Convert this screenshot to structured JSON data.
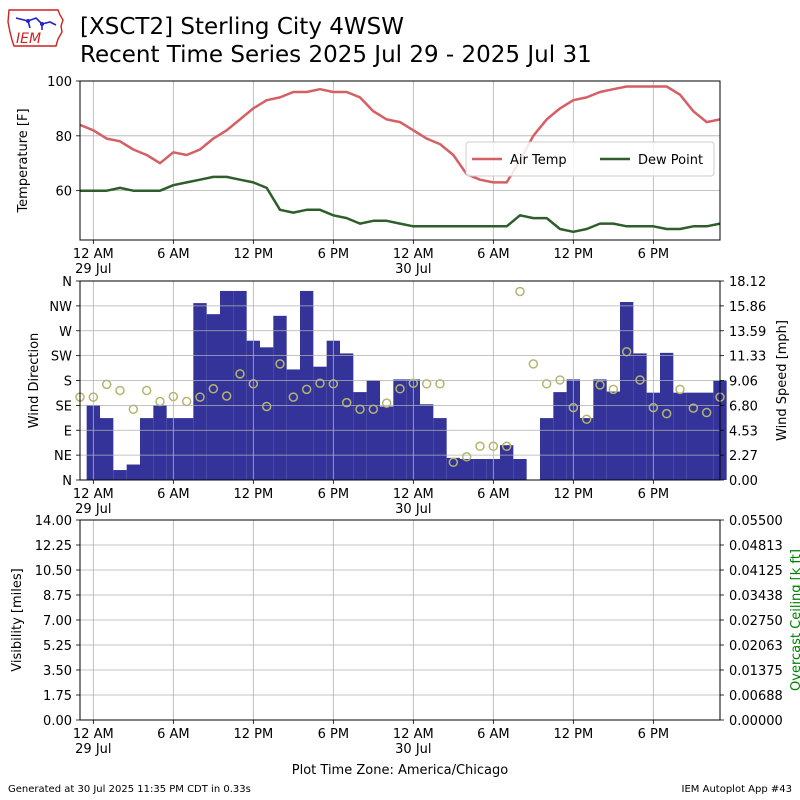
{
  "header": {
    "title_line1": "[XSCT2] Sterling City 4WSW",
    "title_line2": "Recent Time Series 2025 Jul 29 - 2025 Jul 31",
    "logo_text": "IEM"
  },
  "footer": {
    "generated": "Generated at 30 Jul 2025 11:35 PM CDT in 0.33s",
    "app": "IEM Autoplot App #43",
    "timezone": "Plot Time Zone: America/Chicago"
  },
  "x_axis": {
    "tick_hours": [
      0,
      6,
      12,
      18,
      24,
      30,
      36,
      42
    ],
    "tick_labels": [
      "12 AM",
      "6 AM",
      "12 PM",
      "6 PM",
      "12 AM",
      "6 AM",
      "12 PM",
      "6 PM"
    ],
    "date_labels": [
      {
        "hour": 0,
        "label": "29 Jul"
      },
      {
        "hour": 24,
        "label": "30 Jul"
      }
    ],
    "range_hours": [
      -1,
      47
    ]
  },
  "colors": {
    "air_temp": "#d65f64",
    "dew_point": "#2e5e2b",
    "wind_bar": "#333399",
    "gust_marker": "#b5b56e",
    "ceiling_axis": "#008000",
    "logo_red": "#cc2222",
    "logo_blue": "#2222cc"
  },
  "chart_data": [
    {
      "type": "line",
      "ylabel": "Temperature [F]",
      "ylim": [
        42,
        100
      ],
      "yticks": [
        60,
        80,
        100
      ],
      "grid": true,
      "legend": "right",
      "x_hours": [
        -1,
        0,
        1,
        2,
        3,
        4,
        5,
        6,
        7,
        8,
        9,
        10,
        11,
        12,
        13,
        14,
        15,
        16,
        17,
        18,
        19,
        20,
        21,
        22,
        23,
        24,
        25,
        26,
        27,
        28,
        29,
        30,
        31,
        32,
        33,
        34,
        35,
        36,
        37,
        38,
        39,
        40,
        41,
        42,
        43,
        44,
        45,
        46,
        47
      ],
      "series": [
        {
          "name": "Air Temp",
          "values": [
            84,
            82,
            79,
            78,
            75,
            73,
            70,
            74,
            73,
            75,
            79,
            82,
            86,
            90,
            93,
            94,
            96,
            96,
            97,
            96,
            96,
            94,
            89,
            86,
            85,
            82,
            79,
            77,
            73,
            66,
            64,
            63,
            63,
            71,
            80,
            86,
            90,
            93,
            94,
            96,
            97,
            98,
            98,
            98,
            98,
            95,
            89,
            85,
            86
          ]
        },
        {
          "name": "Dew Point",
          "values": [
            60,
            60,
            60,
            61,
            60,
            60,
            60,
            62,
            63,
            64,
            65,
            65,
            64,
            63,
            61,
            53,
            52,
            53,
            53,
            51,
            50,
            48,
            49,
            49,
            48,
            47,
            47,
            47,
            47,
            47,
            47,
            47,
            47,
            51,
            50,
            50,
            46,
            45,
            46,
            48,
            48,
            47,
            47,
            47,
            46,
            46,
            47,
            47,
            48
          ]
        }
      ]
    },
    {
      "type": "bar",
      "ylabel": "Wind Direction",
      "y2label": "Wind Speed [mph]",
      "direction_ticks": [
        "N",
        "NE",
        "E",
        "SE",
        "S",
        "SW",
        "W",
        "NW",
        "N"
      ],
      "speed_ticks": [
        "0.00",
        "2.27",
        "4.53",
        "6.80",
        "9.06",
        "11.33",
        "13.59",
        "15.86",
        "18.12"
      ],
      "ylim_deg": [
        0,
        360
      ],
      "grid": true,
      "bar_hours": [
        0,
        1,
        2,
        3,
        4,
        5,
        6,
        7,
        8,
        9,
        10,
        11,
        12,
        13,
        14,
        15,
        16,
        17,
        18,
        19,
        20,
        21,
        22,
        23,
        24,
        25,
        26,
        27,
        28,
        29,
        30,
        31,
        32,
        33,
        34,
        35,
        36,
        37,
        38,
        39,
        40,
        41,
        42,
        43,
        44,
        45,
        46,
        47
      ],
      "bar_direction_deg": [
        135,
        112,
        18,
        28,
        112,
        135,
        112,
        112,
        320,
        300,
        342,
        342,
        252,
        240,
        297,
        200,
        342,
        205,
        252,
        229,
        159,
        180,
        133,
        182,
        182,
        137,
        112,
        40,
        38,
        38,
        38,
        63,
        38,
        0,
        112,
        159,
        182,
        112,
        182,
        160,
        322,
        229,
        158,
        230,
        158,
        158,
        158,
        180
      ],
      "gust_hours": [
        -1,
        0,
        1,
        2,
        3,
        4,
        5,
        6,
        7,
        8,
        9,
        10,
        11,
        12,
        13,
        14,
        15,
        16,
        17,
        18,
        19,
        20,
        21,
        22,
        23,
        24,
        25,
        26,
        27,
        28,
        29,
        30,
        31,
        32,
        33,
        34,
        35,
        36,
        37,
        38,
        39,
        40,
        41,
        42,
        43,
        44,
        45,
        46,
        47
      ],
      "gust_direction_deg": [
        150,
        150,
        173,
        162,
        128,
        162,
        142,
        151,
        142,
        150,
        165,
        152,
        192,
        174,
        133,
        210,
        150,
        164,
        175,
        174,
        140,
        128,
        128,
        139,
        165,
        175,
        174,
        174,
        32,
        42,
        61,
        61,
        61,
        341,
        210,
        174,
        181,
        131,
        110,
        172,
        164,
        232,
        181,
        131,
        120,
        164,
        130,
        122,
        150
      ]
    },
    {
      "type": "line",
      "ylabel": "Visibility [miles]",
      "y2label": "Overcast Ceiling [k ft]",
      "yticks": [
        "0.00",
        "1.75",
        "3.50",
        "5.25",
        "7.00",
        "8.75",
        "10.50",
        "12.25",
        "14.00"
      ],
      "y2ticks": [
        "0.00000",
        "0.00688",
        "0.01375",
        "0.02063",
        "0.02750",
        "0.03438",
        "0.04125",
        "0.04813",
        "0.05500"
      ],
      "ylim": [
        0,
        14
      ],
      "y2lim": [
        0,
        0.055
      ],
      "grid": true,
      "series": []
    }
  ]
}
